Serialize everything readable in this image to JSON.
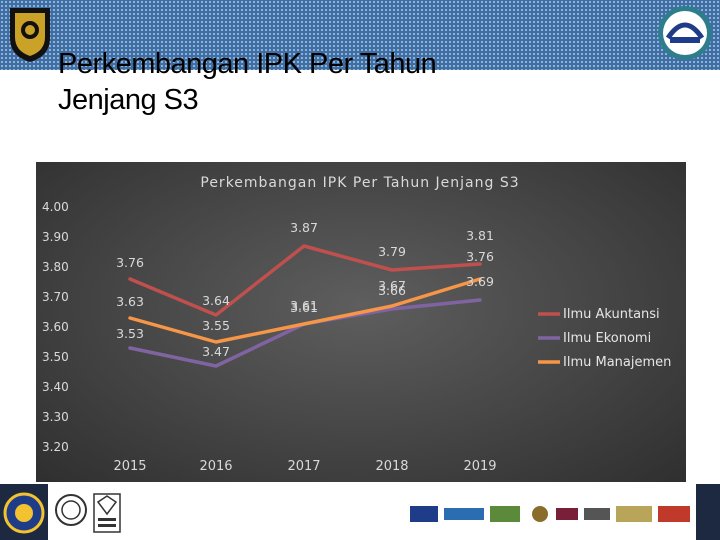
{
  "slide": {
    "title_line1": "Perkembangan IPK Per Tahun",
    "title_line2": "Jenjang S3"
  },
  "colors": {
    "band": "#3d6fa6",
    "panel": "#424242",
    "axis_text": "#d9d9d9"
  },
  "icons": [
    "university-crest-logo",
    "abest21-logo",
    "ub-logo",
    "registered-certification-logo",
    "ukas-certification-logo",
    "partner-logos"
  ],
  "chart_data": {
    "type": "line",
    "title": "Perkembangan IPK Per Tahun Jenjang S3",
    "categories": [
      "2015",
      "2016",
      "2017",
      "2018",
      "2019"
    ],
    "yticks": [
      "4.00",
      "3.90",
      "3.80",
      "3.70",
      "3.60",
      "3.50",
      "3.40",
      "3.30",
      "3.20"
    ],
    "ylim": [
      3.2,
      4.0
    ],
    "legend_position": "right",
    "grid": false,
    "series": [
      {
        "name": "Ilmu Akuntansi",
        "color": "#c0504d",
        "values": [
          3.76,
          3.64,
          3.87,
          3.79,
          3.81
        ],
        "labels": [
          "3.76",
          "3.64",
          "3.87",
          "3.79",
          "3.81"
        ]
      },
      {
        "name": "Ilmu Ekonomi",
        "color": "#8064a2",
        "values": [
          3.53,
          3.47,
          3.61,
          3.66,
          3.69
        ],
        "labels": [
          "3.53",
          "3.47",
          "3.61",
          "3.66",
          "3.69"
        ]
      },
      {
        "name": "Ilmu Manajemen",
        "color": "#f79646",
        "values": [
          3.63,
          3.55,
          3.61,
          3.67,
          3.76
        ],
        "labels": [
          "3.63",
          "3.55",
          "3.61",
          "3.67",
          "3.76"
        ]
      }
    ]
  }
}
